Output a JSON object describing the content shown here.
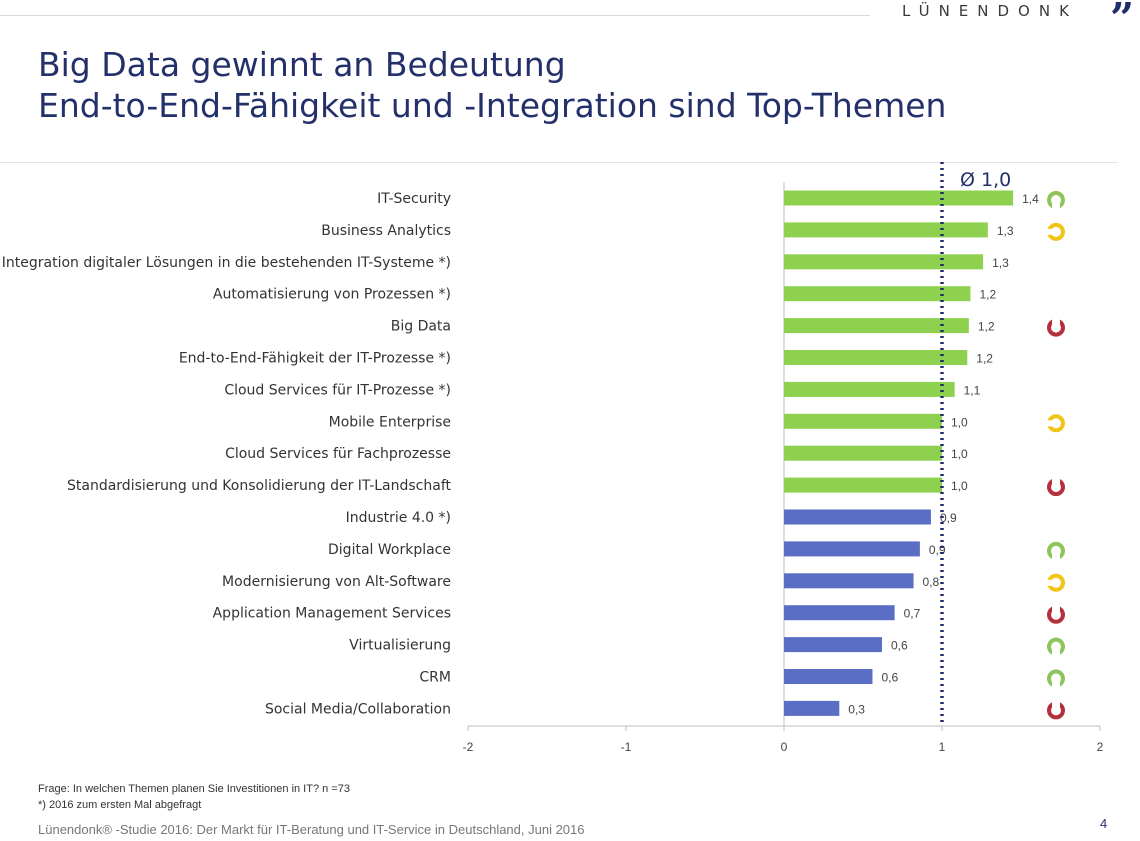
{
  "header": {
    "brand": "LÜNENDONK",
    "title_line1": "Big Data gewinnt an Bedeutung",
    "title_line2": "End-to-End-Fähigkeit und -Integration sind Top-Themen"
  },
  "chart_data": {
    "type": "bar",
    "orientation": "horizontal",
    "categories": [
      "IT-Security",
      "Business Analytics",
      "Integration digitaler Lösungen in die bestehenden IT-Systeme *)",
      "Automatisierung von Prozessen *)",
      "Big Data",
      "End-to-End-Fähigkeit der IT-Prozesse *)",
      "Cloud Services für IT-Prozesse *)",
      "Mobile Enterprise",
      "Cloud Services für Fachprozesse",
      "Standardisierung und Konsolidierung der IT-Landschaft",
      "Industrie 4.0 *)",
      "Digital Workplace",
      "Modernisierung von Alt-Software",
      "Application Management Services",
      "Virtualisierung",
      "CRM",
      "Social Media/Collaboration"
    ],
    "values": [
      1.45,
      1.29,
      1.26,
      1.18,
      1.17,
      1.16,
      1.08,
      1.0,
      1.0,
      1.0,
      0.93,
      0.86,
      0.82,
      0.7,
      0.62,
      0.56,
      0.35
    ],
    "value_labels": [
      "1,4",
      "1,3",
      "1,3",
      "1,2",
      "1,2",
      "1,2",
      "1,1",
      "1,0",
      "1,0",
      "1,0",
      "0,9",
      "0,9",
      "0,8",
      "0,7",
      "0,6",
      "0,6",
      "0,3"
    ],
    "trend": [
      "up",
      "same",
      "",
      "",
      "down",
      "",
      "",
      "same",
      "",
      "down",
      "",
      "up",
      "same",
      "down",
      "up",
      "up",
      "down"
    ],
    "xlim": [
      -2,
      2
    ],
    "xticks": [
      "-2",
      "-1",
      "0",
      "1",
      "2"
    ],
    "average_line": 1.0,
    "average_label": "Ø 1,0",
    "colors": {
      "above_avg": "#8ed14f",
      "below_avg": "#5b6ec6",
      "avg_line": "#1f2d6b",
      "trend_up": "#8dc55a",
      "trend_same": "#f2c418",
      "trend_down": "#b4303c"
    }
  },
  "footer": {
    "question": "Frage: In welchen Themen planen Sie Investitionen in IT?   n =73",
    "note": "*) 2016 zum ersten Mal abgefragt",
    "source": "Lünendonk® -Studie 2016: Der Markt für IT-Beratung und IT-Service in Deutschland, Juni 2016",
    "page_number": "4"
  }
}
